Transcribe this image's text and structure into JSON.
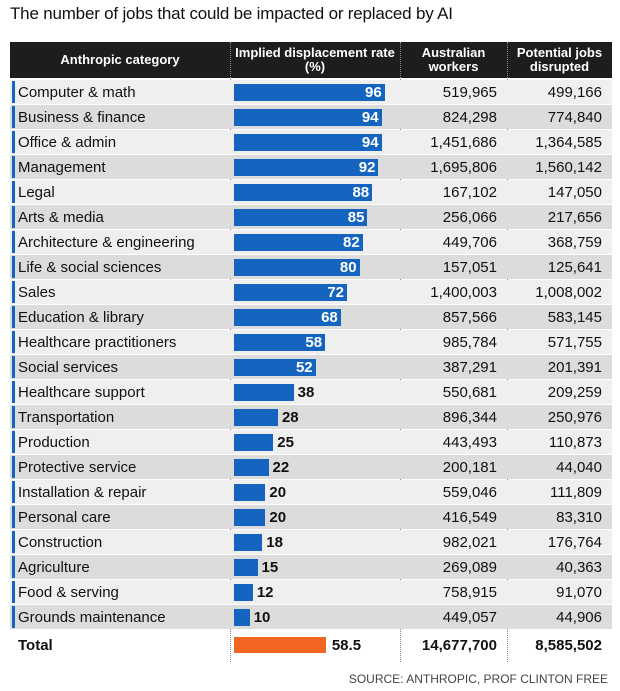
{
  "title": "The number of jobs that could be impacted or replaced by AI",
  "headers": {
    "category": "Anthropic category",
    "rate": "Implied displacement rate (%)",
    "workers": "Australian workers",
    "disrupted": "Potential jobs disrupted"
  },
  "colors": {
    "bar": "#1565c0",
    "total_bar": "#f26522",
    "header_bg": "#1d1d1d",
    "row_light": "#efefef",
    "row_dark": "#dcdcdc"
  },
  "chart_data": {
    "type": "table",
    "title": "The number of jobs that could be impacted or replaced by AI",
    "rows": [
      {
        "category": "Computer & math",
        "rate": 96,
        "workers": "519,965",
        "disrupted": "499,166"
      },
      {
        "category": "Business & finance",
        "rate": 94,
        "workers": "824,298",
        "disrupted": "774,840"
      },
      {
        "category": "Office & admin",
        "rate": 94,
        "workers": "1,451,686",
        "disrupted": "1,364,585"
      },
      {
        "category": "Management",
        "rate": 92,
        "workers": "1,695,806",
        "disrupted": "1,560,142"
      },
      {
        "category": "Legal",
        "rate": 88,
        "workers": "167,102",
        "disrupted": "147,050"
      },
      {
        "category": "Arts & media",
        "rate": 85,
        "workers": "256,066",
        "disrupted": "217,656"
      },
      {
        "category": "Architecture & engineering",
        "rate": 82,
        "workers": "449,706",
        "disrupted": "368,759"
      },
      {
        "category": "Life & social sciences",
        "rate": 80,
        "workers": "157,051",
        "disrupted": "125,641"
      },
      {
        "category": "Sales",
        "rate": 72,
        "workers": "1,400,003",
        "disrupted": "1,008,002"
      },
      {
        "category": "Education & library",
        "rate": 68,
        "workers": "857,566",
        "disrupted": "583,145"
      },
      {
        "category": "Healthcare practitioners",
        "rate": 58,
        "workers": "985,784",
        "disrupted": "571,755"
      },
      {
        "category": "Social services",
        "rate": 52,
        "workers": "387,291",
        "disrupted": "201,391"
      },
      {
        "category": "Healthcare support",
        "rate": 38,
        "workers": "550,681",
        "disrupted": "209,259"
      },
      {
        "category": "Transportation",
        "rate": 28,
        "workers": "896,344",
        "disrupted": "250,976"
      },
      {
        "category": "Production",
        "rate": 25,
        "workers": "443,493",
        "disrupted": "110,873"
      },
      {
        "category": "Protective service",
        "rate": 22,
        "workers": "200,181",
        "disrupted": "44,040"
      },
      {
        "category": "Installation & repair",
        "rate": 20,
        "workers": "559,046",
        "disrupted": "111,809"
      },
      {
        "category": "Personal care",
        "rate": 20,
        "workers": "416,549",
        "disrupted": "83,310"
      },
      {
        "category": "Construction",
        "rate": 18,
        "workers": "982,021",
        "disrupted": "176,764"
      },
      {
        "category": "Agriculture",
        "rate": 15,
        "workers": "269,089",
        "disrupted": "40,363"
      },
      {
        "category": "Food & serving",
        "rate": 12,
        "workers": "758,915",
        "disrupted": "91,070"
      },
      {
        "category": "Grounds maintenance",
        "rate": 10,
        "workers": "449,057",
        "disrupted": "44,906"
      }
    ],
    "total": {
      "label": "Total",
      "rate": 58.5,
      "workers": "14,677,700",
      "disrupted": "8,585,502"
    }
  },
  "source": "SOURCE: ANTHROPIC, PROF CLINTON FREE"
}
